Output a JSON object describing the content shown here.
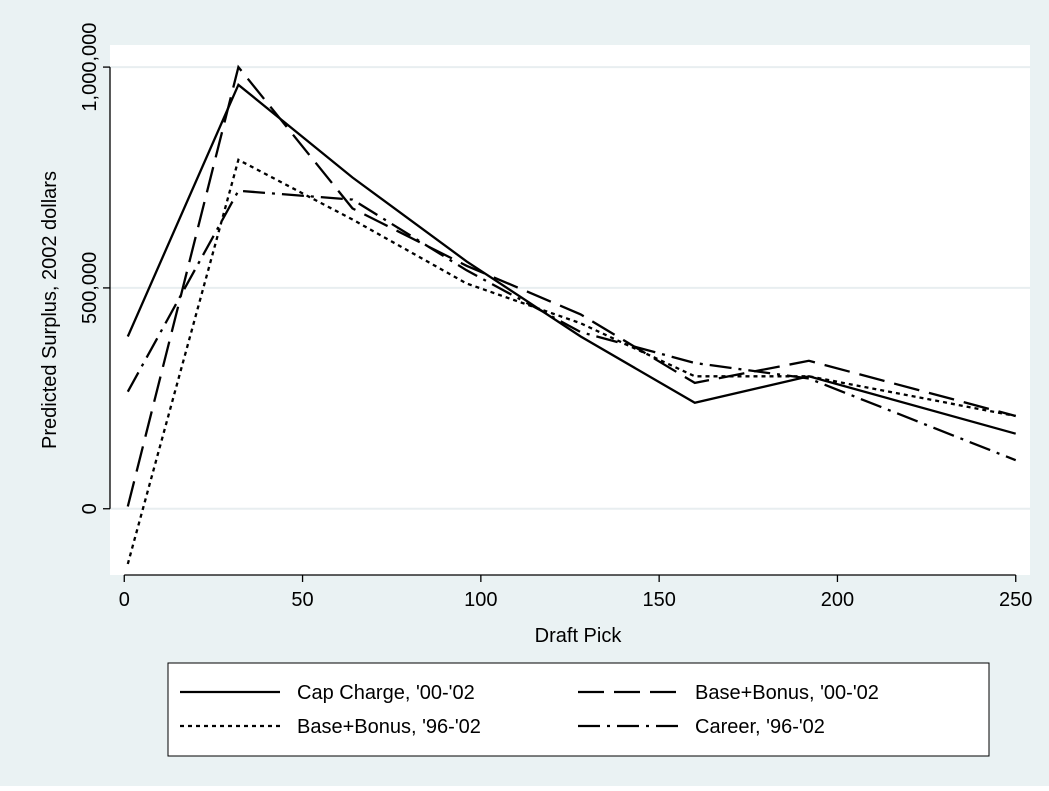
{
  "chart_data": {
    "type": "line",
    "title": "",
    "xlabel": "Draft Pick",
    "ylabel": "Predicted Surplus, 2002 dollars",
    "xlim": [
      -4,
      254
    ],
    "ylim": [
      -150000,
      1050000
    ],
    "xticks": [
      0,
      50,
      100,
      150,
      200,
      250
    ],
    "xtick_labels": [
      "0",
      "50",
      "100",
      "150",
      "200",
      "250"
    ],
    "yticks": [
      0,
      500000,
      1000000
    ],
    "ytick_labels": [
      "0",
      "500,000",
      "1,000,000"
    ],
    "grid": "horizontal",
    "legend_position": "bottom",
    "series": [
      {
        "name": "Cap Charge, '00-'02",
        "dash": "solid",
        "x": [
          1,
          32,
          64,
          96,
          128,
          160,
          192,
          250
        ],
        "y": [
          390000,
          960000,
          750000,
          560000,
          390000,
          240000,
          300000,
          170000
        ]
      },
      {
        "name": "Base+Bonus, '00-'02",
        "dash": "longdash",
        "x": [
          1,
          32,
          64,
          96,
          128,
          160,
          192,
          250
        ],
        "y": [
          5000,
          1000000,
          680000,
          550000,
          440000,
          285000,
          335000,
          210000
        ]
      },
      {
        "name": "Base+Bonus, '96-'02",
        "dash": "dot",
        "x": [
          1,
          32,
          64,
          96,
          128,
          160,
          192,
          250
        ],
        "y": [
          -125000,
          790000,
          655000,
          510000,
          420000,
          300000,
          300000,
          210000
        ]
      },
      {
        "name": "Career, '96-'02",
        "dash": "dashdot",
        "x": [
          1,
          32,
          64,
          96,
          128,
          160,
          192,
          250
        ],
        "y": [
          265000,
          720000,
          700000,
          540000,
          400000,
          330000,
          295000,
          110000
        ]
      }
    ]
  }
}
